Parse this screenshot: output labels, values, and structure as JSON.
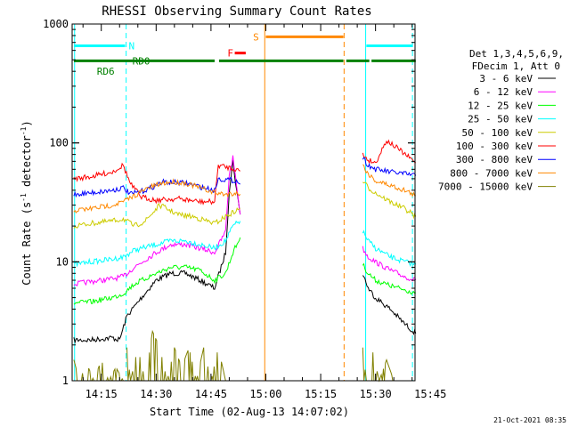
{
  "chart_data": {
    "type": "line",
    "title": "RHESSI Observing Summary Count Rates",
    "xlabel": "Start Time (02-Aug-13 14:07:02)",
    "ylabel_main": "Count Rate (s",
    "ylabel_sup1": "-1",
    "ylabel_mid": " detector",
    "ylabel_sup2": "-1",
    "ylabel_end": ")",
    "yscale": "log",
    "ylim": [
      1,
      1000
    ],
    "xlim_min": [
      7.03,
      100.8
    ],
    "x_ticks": [
      {
        "label": "14:15",
        "min": 15
      },
      {
        "label": "14:30",
        "min": 30
      },
      {
        "label": "14:45",
        "min": 45
      },
      {
        "label": "15:00",
        "min": 60
      },
      {
        "label": "15:15",
        "min": 75
      },
      {
        "label": "15:30",
        "min": 90
      },
      {
        "label": "15:45",
        "min": 105
      }
    ],
    "y_ticks": [
      {
        "label": "1",
        "v": 1
      },
      {
        "label": "10",
        "v": 10
      },
      {
        "label": "100",
        "v": 100
      },
      {
        "label": "1000",
        "v": 1000
      }
    ],
    "legend_header": [
      "Det 1,3,4,5,6,9,",
      "FDecim 1, Att 0"
    ],
    "series": [
      {
        "name": "3 - 6 keV",
        "color": "#000000",
        "segments": [
          [
            [
              7.5,
              2.2
            ],
            [
              12,
              2.2
            ],
            [
              18,
              2.3
            ],
            [
              20,
              2.2
            ],
            [
              22,
              3.5
            ],
            [
              26,
              5
            ],
            [
              30,
              7
            ],
            [
              34,
              8
            ],
            [
              38,
              8
            ],
            [
              42,
              7
            ],
            [
              46,
              6
            ],
            [
              49,
              12
            ],
            [
              50,
              40
            ],
            [
              51,
              70
            ],
            [
              52,
              40
            ],
            [
              53,
              25
            ]
          ],
          [
            [
              86.5,
              8
            ],
            [
              88,
              6
            ],
            [
              90,
              5
            ],
            [
              94,
              4
            ],
            [
              98,
              3
            ],
            [
              101,
              2.5
            ]
          ]
        ]
      },
      {
        "name": "6 - 12 keV",
        "color": "#ff00ff",
        "segments": [
          [
            [
              7.5,
              6.5
            ],
            [
              12,
              6.8
            ],
            [
              18,
              7.2
            ],
            [
              21,
              7.5
            ],
            [
              24,
              9
            ],
            [
              30,
              12
            ],
            [
              34,
              14
            ],
            [
              38,
              14
            ],
            [
              42,
              13
            ],
            [
              46,
              12
            ],
            [
              49,
              18
            ],
            [
              50,
              55
            ],
            [
              51,
              75
            ],
            [
              52,
              45
            ],
            [
              53,
              25
            ]
          ],
          [
            [
              86.5,
              13
            ],
            [
              88,
              11
            ],
            [
              90,
              10
            ],
            [
              94,
              8.5
            ],
            [
              98,
              7.5
            ],
            [
              101,
              7
            ]
          ]
        ]
      },
      {
        "name": "12 - 25 keV",
        "color": "#00ff00",
        "segments": [
          [
            [
              7.5,
              4.5
            ],
            [
              12,
              4.6
            ],
            [
              18,
              5
            ],
            [
              21,
              5.4
            ],
            [
              24,
              6.5
            ],
            [
              30,
              8
            ],
            [
              34,
              9
            ],
            [
              38,
              9
            ],
            [
              42,
              8.5
            ],
            [
              46,
              7
            ],
            [
              49,
              8
            ],
            [
              51,
              12
            ],
            [
              53,
              16
            ]
          ],
          [
            [
              86.5,
              9.5
            ],
            [
              88,
              8
            ],
            [
              90,
              7
            ],
            [
              94,
              6.3
            ],
            [
              98,
              5.8
            ],
            [
              101,
              5.5
            ]
          ]
        ]
      },
      {
        "name": "25 - 50 keV",
        "color": "#00ffff",
        "segments": [
          [
            [
              7.5,
              9.5
            ],
            [
              12,
              10
            ],
            [
              18,
              10.5
            ],
            [
              21,
              11
            ],
            [
              24,
              12.5
            ],
            [
              30,
              14
            ],
            [
              34,
              15
            ],
            [
              38,
              15
            ],
            [
              42,
              14
            ],
            [
              46,
              13
            ],
            [
              49,
              15
            ],
            [
              51,
              20
            ],
            [
              53,
              22
            ]
          ],
          [
            [
              86.5,
              18
            ],
            [
              88,
              15
            ],
            [
              90,
              13
            ],
            [
              94,
              11
            ],
            [
              98,
              10
            ],
            [
              101,
              9.5
            ]
          ]
        ]
      },
      {
        "name": "50 - 100 keV",
        "color": "#cccc00",
        "segments": [
          [
            [
              7.5,
              20
            ],
            [
              12,
              21
            ],
            [
              18,
              22
            ],
            [
              21,
              23
            ],
            [
              24,
              20
            ],
            [
              27,
              22
            ],
            [
              31,
              30
            ],
            [
              36,
              25
            ],
            [
              40,
              24
            ],
            [
              44,
              22
            ],
            [
              46,
              21
            ],
            [
              49,
              24
            ],
            [
              51,
              26
            ],
            [
              53,
              28
            ]
          ],
          [
            [
              86.5,
              48
            ],
            [
              88,
              42
            ],
            [
              90,
              38
            ],
            [
              94,
              32
            ],
            [
              98,
              28
            ],
            [
              101,
              24
            ]
          ]
        ]
      },
      {
        "name": "100 - 300 keV",
        "color": "#ff0000",
        "segments": [
          [
            [
              7.5,
              50
            ],
            [
              12,
              52
            ],
            [
              18,
              57
            ],
            [
              21,
              65
            ],
            [
              23,
              45
            ],
            [
              26,
              35
            ],
            [
              30,
              33
            ],
            [
              36,
              34
            ],
            [
              42,
              32
            ],
            [
              46,
              32
            ],
            [
              47,
              65
            ],
            [
              52,
              60
            ],
            [
              53,
              58
            ]
          ],
          [
            [
              86.5,
              80
            ],
            [
              88,
              72
            ],
            [
              90,
              68
            ],
            [
              93,
              105
            ],
            [
              96,
              90
            ],
            [
              101,
              68
            ]
          ]
        ]
      },
      {
        "name": "300 - 800 keV",
        "color": "#0000ff",
        "segments": [
          [
            [
              7.5,
              37
            ],
            [
              12,
              38
            ],
            [
              18,
              40
            ],
            [
              21,
              42
            ],
            [
              23,
              37
            ],
            [
              27,
              40
            ],
            [
              32,
              47
            ],
            [
              38,
              46
            ],
            [
              43,
              42
            ],
            [
              46,
              40
            ],
            [
              47,
              50
            ],
            [
              52,
              48
            ],
            [
              53,
              45
            ]
          ],
          [
            [
              86.5,
              75
            ],
            [
              88,
              65
            ],
            [
              90,
              60
            ],
            [
              94,
              57
            ],
            [
              98,
              55
            ],
            [
              101,
              53
            ]
          ]
        ]
      },
      {
        "name": "800 - 7000 keV",
        "color": "#ff8800",
        "segments": [
          [
            [
              7.5,
              27
            ],
            [
              12,
              28
            ],
            [
              18,
              30
            ],
            [
              21,
              32
            ],
            [
              24,
              36
            ],
            [
              28,
              42
            ],
            [
              32,
              46
            ],
            [
              35,
              47
            ],
            [
              38,
              46
            ],
            [
              42,
              42
            ],
            [
              46,
              38
            ],
            [
              49,
              37
            ],
            [
              52,
              38
            ],
            [
              53,
              37
            ]
          ],
          [
            [
              86.5,
              65
            ],
            [
              88,
              55
            ],
            [
              90,
              48
            ],
            [
              94,
              44
            ],
            [
              98,
              40
            ],
            [
              101,
              36
            ]
          ]
        ]
      },
      {
        "name": "7000 - 15000 keV",
        "color": "#808000",
        "segments": [
          [
            [
              7.5,
              1.5
            ],
            [
              9,
              1.0
            ],
            [
              11,
              1.4
            ],
            [
              13,
              1.0
            ],
            [
              15,
              1.5
            ],
            [
              17,
              1.0
            ],
            [
              19,
              1.3
            ],
            [
              21,
              1.0
            ]
          ],
          [
            [
              22,
              1.9
            ],
            [
              23,
              1.0
            ],
            [
              25,
              1.9
            ],
            [
              27,
              1.0
            ],
            [
              29,
              2.6
            ],
            [
              31,
              1.9
            ],
            [
              33,
              1.0
            ],
            [
              35,
              1.9
            ],
            [
              37,
              1.3
            ],
            [
              39,
              1.9
            ],
            [
              41,
              1.0
            ],
            [
              43,
              1.9
            ],
            [
              45,
              1.0
            ],
            [
              47,
              1.9
            ],
            [
              49,
              1.0
            ]
          ],
          [
            [
              86.5,
              1.9
            ],
            [
              87.5,
              1.0
            ],
            [
              89,
              1.9
            ],
            [
              91,
              1.0
            ],
            [
              93,
              1.5
            ],
            [
              95,
              1.0
            ]
          ]
        ]
      }
    ],
    "vlines": [
      {
        "min": 7.7,
        "color": "#00ffff",
        "style": "solid"
      },
      {
        "min": 21.8,
        "color": "#00ffff",
        "style": "dashed"
      },
      {
        "min": 59.7,
        "color": "#ff8800",
        "style": "solid"
      },
      {
        "min": 81.4,
        "color": "#ff8800",
        "style": "dashed"
      },
      {
        "min": 87.3,
        "color": "#00ffff",
        "style": "solid"
      },
      {
        "min": 100.1,
        "color": "#00ffff",
        "style": "dashed"
      }
    ],
    "flag_bars": [
      {
        "label": "N",
        "color": "#00ffff",
        "y": 655,
        "segments": [
          [
            7.5,
            21.5
          ],
          [
            87.5,
            100
          ]
        ],
        "label_min": 22.5,
        "label_y": 655
      },
      {
        "label": "S",
        "color": "#ff8800",
        "y": 780,
        "segments": [
          [
            60,
            81.2
          ]
        ],
        "label_min": 56.5,
        "label_y": 780
      },
      {
        "label": "F",
        "color": "#ff0000",
        "y": 570,
        "segments": [
          [
            51.5,
            54.5
          ]
        ],
        "label_min": 49.5,
        "label_y": 570
      },
      {
        "label": "RD0",
        "color": "#008000",
        "y": 490,
        "segments": [
          [
            7.5,
            46
          ],
          [
            47.2,
            81.2
          ],
          [
            82,
            88.3
          ],
          [
            88.9,
            101
          ]
        ],
        "label_min": 23.5,
        "label_y": 490
      },
      {
        "label": "RD6",
        "color": "#008000",
        "y": 450,
        "segments": [
          [
            7.5,
            81.2
          ]
        ],
        "label_min": 13.8,
        "label_y": 400,
        "draw": false
      }
    ],
    "date_stamp": "21-Oct-2021 08:35"
  }
}
